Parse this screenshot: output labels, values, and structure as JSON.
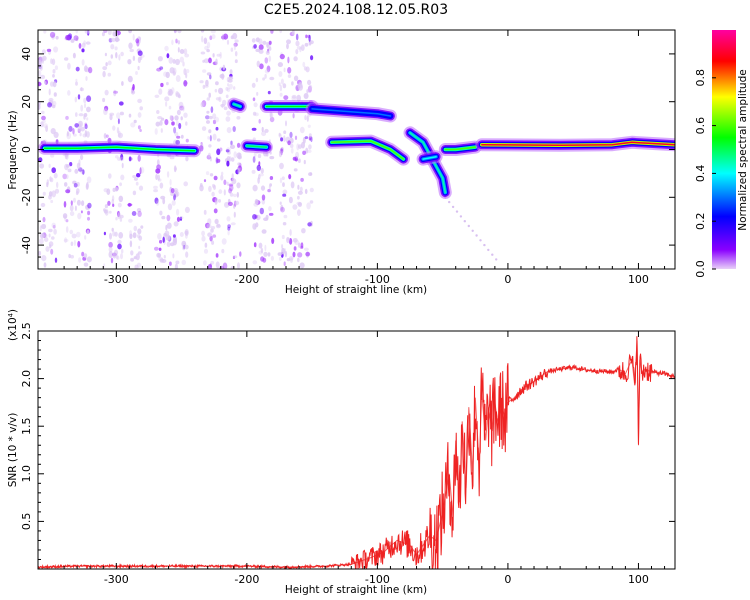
{
  "figure": {
    "title": "C2E5.2024.108.12.05.R03"
  },
  "chart_data": [
    {
      "type": "heatmap",
      "title": "C2E5.2024.108.12.05.R03",
      "xlabel": "Height of straight line (km)",
      "ylabel": "Frequency (Hz)",
      "xlim": [
        -360,
        128
      ],
      "ylim": [
        -50,
        50
      ],
      "xticks": [
        -300,
        -200,
        -100,
        0,
        100
      ],
      "yticks": [
        -40,
        -20,
        0,
        20,
        40
      ],
      "x_tick_labels": [
        "-300",
        "-200",
        "-100",
        "0",
        "100"
      ],
      "y_tick_labels": [
        "-40",
        "-20",
        "0",
        "20",
        "40"
      ],
      "colorbar": {
        "label": "Normalized spectral amplitude",
        "range": [
          0,
          1
        ],
        "ticks": [
          0.0,
          0.2,
          0.4,
          0.6,
          0.8
        ],
        "tick_labels": [
          "0.0",
          "0.2",
          "0.4",
          "0.6",
          "0.8"
        ],
        "colormap": [
          "#e8d0f8",
          "#8a00ff",
          "#0000ff",
          "#00ffff",
          "#00ff00",
          "#ffff00",
          "#ff0000",
          "#ff00a0"
        ]
      },
      "ridges": [
        {
          "points": [
            [
              -355,
              0.5
            ],
            [
              -330,
              0.5
            ],
            [
              -300,
              1
            ],
            [
              -270,
              0
            ],
            [
              -240,
              -0.5
            ]
          ],
          "amplitude": 0.55
        },
        {
          "points": [
            [
              -200,
              1.5
            ],
            [
              -185,
              1
            ]
          ],
          "amplitude": 0.5
        },
        {
          "points": [
            [
              -210,
              19
            ],
            [
              -205,
              18
            ]
          ],
          "amplitude": 0.45
        },
        {
          "points": [
            [
              -185,
              18
            ],
            [
              -150,
              18
            ]
          ],
          "amplitude": 0.55
        },
        {
          "points": [
            [
              -150,
              17
            ],
            [
              -100,
              15
            ],
            [
              -90,
              14
            ]
          ],
          "amplitude": 0.3
        },
        {
          "points": [
            [
              -135,
              3
            ],
            [
              -105,
              3.5
            ],
            [
              -90,
              0
            ],
            [
              -80,
              -4
            ]
          ],
          "amplitude": 0.6
        },
        {
          "points": [
            [
              -75,
              7
            ],
            [
              -65,
              3
            ],
            [
              -55,
              -7
            ],
            [
              -50,
              -12
            ],
            [
              -48,
              -18
            ]
          ],
          "amplitude": 0.45
        },
        {
          "points": [
            [
              -65,
              -4
            ],
            [
              -55,
              -3
            ]
          ],
          "amplitude": 0.4
        },
        {
          "points": [
            [
              -48,
              0
            ],
            [
              -40,
              0
            ],
            [
              -25,
              1
            ]
          ],
          "amplitude": 0.6
        },
        {
          "points": [
            [
              -20,
              2
            ],
            [
              40,
              1.8
            ],
            [
              80,
              2
            ],
            [
              95,
              3
            ],
            [
              128,
              2
            ]
          ],
          "amplitude": 0.9
        }
      ],
      "noise_bands": [
        [
          -360,
          -345
        ],
        [
          -340,
          -320
        ],
        [
          -310,
          -295
        ],
        [
          -290,
          -280
        ],
        [
          -270,
          -245
        ],
        [
          -235,
          -205
        ],
        [
          -195,
          -180
        ],
        [
          -175,
          -150
        ]
      ]
    },
    {
      "type": "line",
      "xlabel": "Height of straight line (km)",
      "ylabel": "SNR (10 * v/v)",
      "y_multiplier": "(x10⁴)",
      "xlim": [
        -360,
        128
      ],
      "ylim": [
        0,
        2.5
      ],
      "xticks": [
        -300,
        -200,
        -100,
        0,
        100
      ],
      "yticks": [
        0.5,
        1.0,
        1.5,
        2.0,
        2.5
      ],
      "x_tick_labels": [
        "-300",
        "-200",
        "-100",
        "0",
        "100"
      ],
      "y_tick_labels": [
        "0.5",
        "1.0",
        "1.5",
        "2.0",
        "2.5"
      ],
      "series": [
        {
          "color": "#ee2222",
          "x": [
            -360,
            -330,
            -300,
            -250,
            -200,
            -170,
            -140,
            -120,
            -105,
            -95,
            -85,
            -75,
            -70,
            -60,
            -55,
            -50,
            -45,
            -42,
            -40,
            -37,
            -35,
            -32,
            -30,
            -27,
            -25,
            -22,
            -20,
            -17,
            -15,
            -12,
            -10,
            -8,
            -5,
            -2,
            0,
            5,
            10,
            15,
            20,
            25,
            30,
            40,
            50,
            60,
            70,
            80,
            85,
            90,
            95,
            97,
            99,
            100,
            101,
            103,
            105,
            110,
            120,
            128
          ],
          "y": [
            0.02,
            0.03,
            0.03,
            0.03,
            0.03,
            0.02,
            0.03,
            0.05,
            0.12,
            0.18,
            0.3,
            0.25,
            0.15,
            0.35,
            0.3,
            0.6,
            1.0,
            0.55,
            1.35,
            0.7,
            1.55,
            0.85,
            1.7,
            1.0,
            1.8,
            1.1,
            1.85,
            1.35,
            1.7,
            1.45,
            1.75,
            1.55,
            1.7,
            1.6,
            1.75,
            1.8,
            1.88,
            1.93,
            1.97,
            2.02,
            2.07,
            2.1,
            2.12,
            2.09,
            2.08,
            2.07,
            2.1,
            2.05,
            2.2,
            1.95,
            2.4,
            1.3,
            2.2,
            2.05,
            2.1,
            2.07,
            2.05,
            2.02
          ]
        }
      ]
    }
  ]
}
